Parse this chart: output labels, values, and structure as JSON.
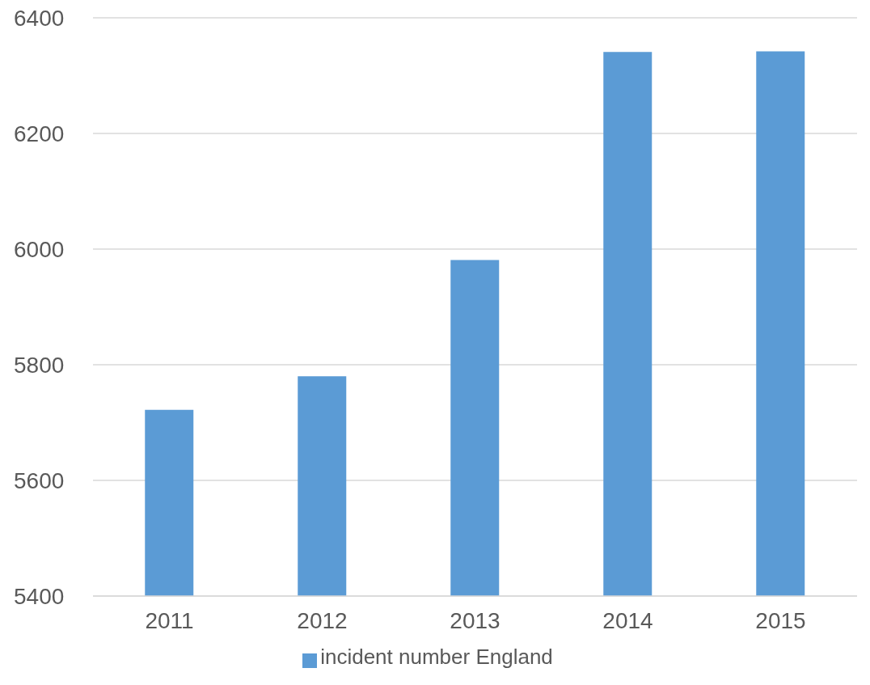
{
  "chart_data": {
    "type": "bar",
    "categories": [
      "2011",
      "2012",
      "2013",
      "2014",
      "2015"
    ],
    "series": [
      {
        "name": "incident number England",
        "color": "#5b9bd5",
        "values": [
          5722,
          5780,
          5981,
          6341,
          6342
        ]
      }
    ],
    "ylim": [
      5400,
      6400
    ],
    "yticks": [
      5400,
      5600,
      5800,
      6000,
      6200,
      6400
    ],
    "grid": "y",
    "legend": "bottom"
  }
}
